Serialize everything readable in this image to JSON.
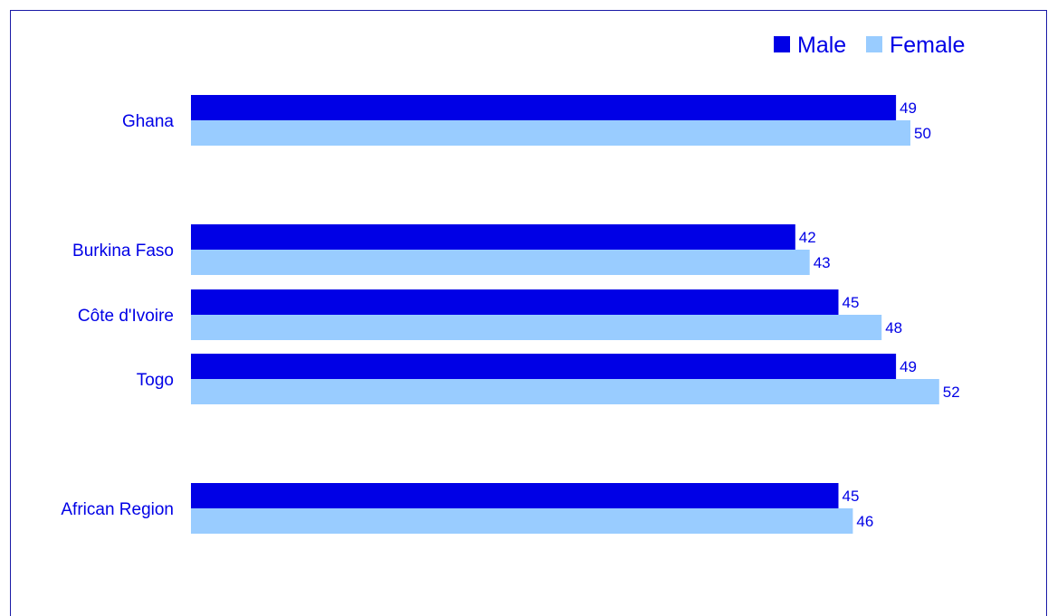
{
  "chart_data": {
    "type": "bar",
    "orientation": "horizontal",
    "categories": [
      "Ghana",
      "Burkina Faso",
      "Côte d'Ivoire",
      "Togo",
      "African Region"
    ],
    "series": [
      {
        "name": "Male",
        "values": [
          49,
          42,
          45,
          49,
          45
        ]
      },
      {
        "name": "Female",
        "values": [
          50,
          43,
          48,
          52,
          46
        ]
      }
    ],
    "xlim": [
      0,
      52
    ],
    "grid": false,
    "legend_position": "top-right",
    "colors": {
      "Male": "#0000e6",
      "Female": "#99ccff",
      "text": "#0000e6",
      "frame": "#1a1aa6"
    }
  }
}
